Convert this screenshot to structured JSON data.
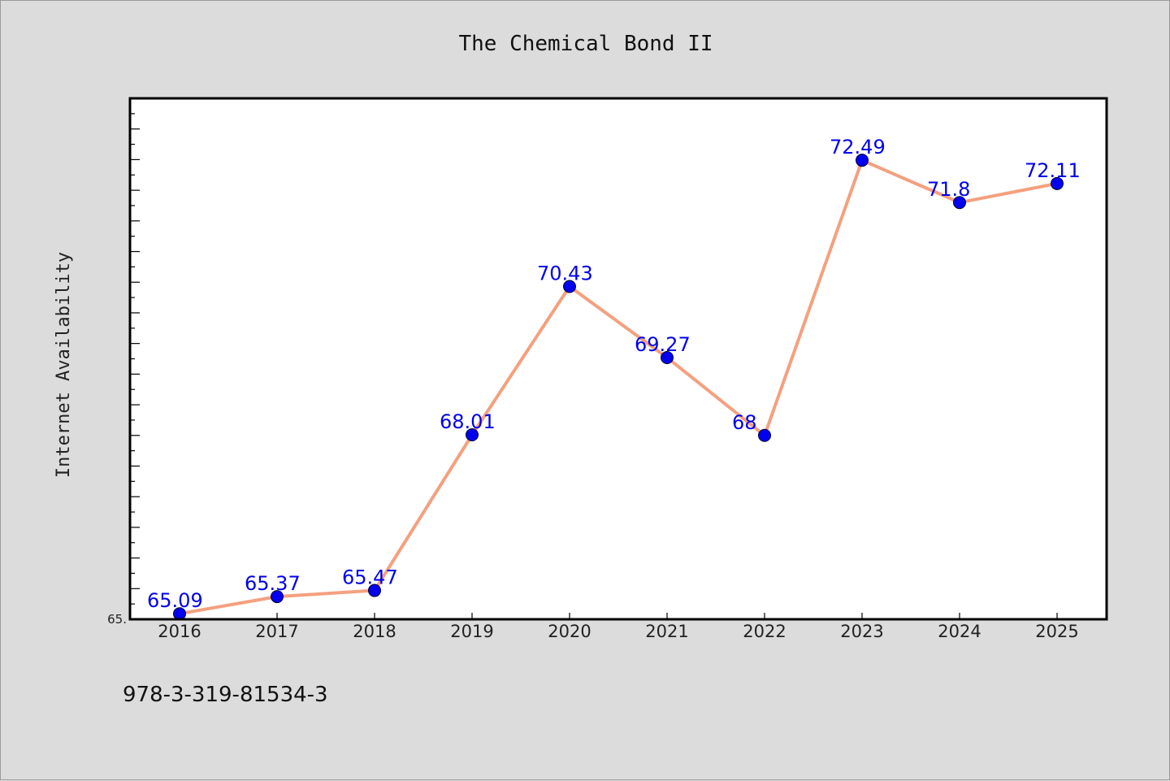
{
  "chart_data": {
    "type": "line",
    "title": "The Chemical Bond II",
    "xlabel": "",
    "ylabel": "Internet Availability",
    "categories": [
      "2016",
      "2017",
      "2018",
      "2019",
      "2020",
      "2021",
      "2022",
      "2023",
      "2024",
      "2025"
    ],
    "series": [
      {
        "values": [
          65.09,
          65.37,
          65.47,
          68.01,
          70.43,
          69.27,
          68,
          72.49,
          71.8,
          72.11
        ],
        "data_labels": [
          "65.09",
          "65.37",
          "65.47",
          "68.01",
          "70.43",
          "69.27",
          "68",
          "72.49",
          "71.8",
          "72.11"
        ]
      }
    ],
    "ylim": [
      65.0,
      73.5
    ],
    "y_tick_label": "65.",
    "grid": false,
    "legend": "none",
    "colors": {
      "line": "#f4a07f",
      "marker": "#0000ee",
      "label": "#0000ee",
      "plot_background": "#ffffff",
      "page_background": "#dcdcdc"
    }
  },
  "footer": {
    "isbn": "978-3-319-81534-3"
  }
}
